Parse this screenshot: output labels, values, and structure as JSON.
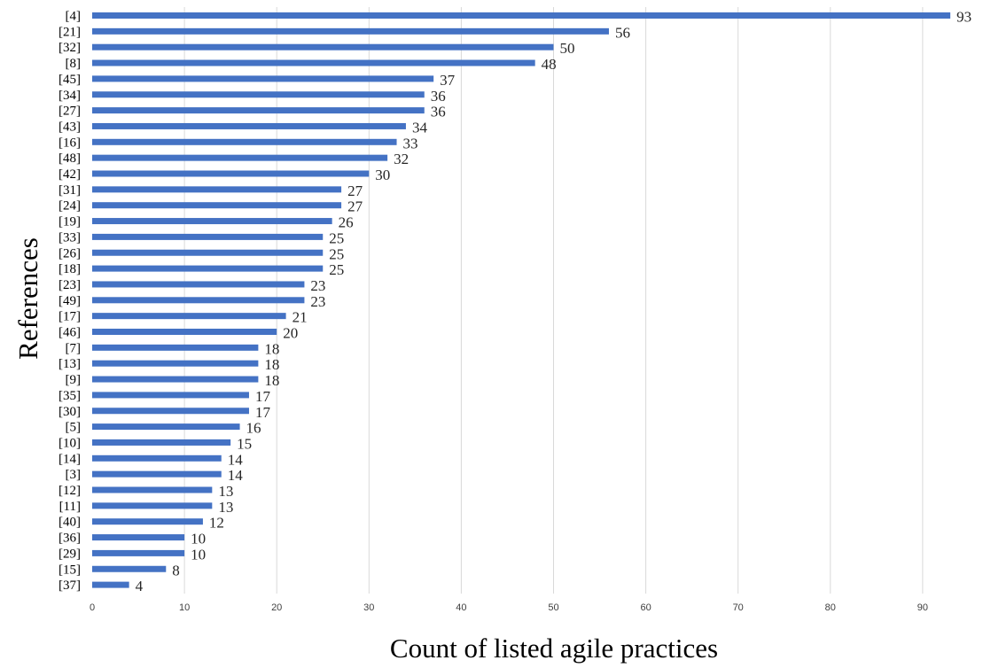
{
  "chart_data": {
    "type": "bar",
    "orientation": "horizontal",
    "xlabel": "Count of listed agile practices",
    "ylabel": "References",
    "categories": [
      "[4]",
      "[21]",
      "[32]",
      "[8]",
      "[45]",
      "[34]",
      "[27]",
      "[43]",
      "[16]",
      "[48]",
      "[42]",
      "[31]",
      "[24]",
      "[19]",
      "[33]",
      "[26]",
      "[18]",
      "[23]",
      "[49]",
      "[17]",
      "[46]",
      "[7]",
      "[13]",
      "[9]",
      "[35]",
      "[30]",
      "[5]",
      "[10]",
      "[14]",
      "[3]",
      "[12]",
      "[11]",
      "[40]",
      "[36]",
      "[29]",
      "[15]",
      "[37]"
    ],
    "values": [
      93,
      56,
      50,
      48,
      37,
      36,
      36,
      34,
      33,
      32,
      30,
      27,
      27,
      26,
      25,
      25,
      25,
      23,
      23,
      21,
      20,
      18,
      18,
      18,
      17,
      17,
      16,
      15,
      14,
      14,
      13,
      13,
      12,
      10,
      10,
      8,
      4
    ],
    "xlim": [
      0,
      93
    ],
    "xticks": [
      0,
      10,
      20,
      30,
      40,
      50,
      60,
      70,
      80,
      90
    ],
    "grid": "vertical",
    "legend": "none",
    "bar_color": "#4472c4"
  }
}
